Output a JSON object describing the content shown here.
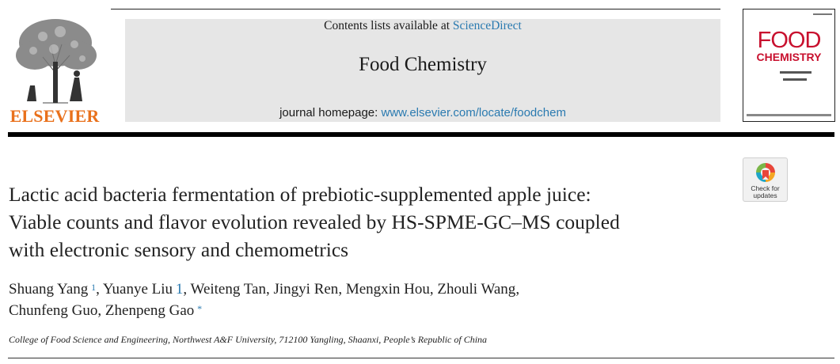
{
  "publisher": {
    "logo_word": "ELSEVIER"
  },
  "banner": {
    "contents_prefix": "Contents lists available at ",
    "contents_link": "ScienceDirect",
    "journal_name": "Food Chemistry",
    "homepage_prefix": "journal homepage: ",
    "homepage_link": "www.elsevier.com/locate/foodchem"
  },
  "cover": {
    "line1": "FOOD",
    "line2": "CHEMISTRY"
  },
  "check_updates": {
    "label_line1": "Check for",
    "label_line2": "updates"
  },
  "article": {
    "title_lines": [
      "Lactic acid bacteria fermentation of prebiotic-supplemented apple juice:",
      "Viable counts and flavor evolution revealed by HS-SPME-GC–MS coupled",
      "with electronic sensory and chemometrics"
    ],
    "authors": [
      {
        "name": "Shuang Yang",
        "mark": "1"
      },
      {
        "name": "Yuanye Liu",
        "mark": "1"
      },
      {
        "name": "Weiteng Tan",
        "mark": ""
      },
      {
        "name": "Jingyi Ren",
        "mark": ""
      },
      {
        "name": "Mengxin Hou",
        "mark": ""
      },
      {
        "name": "Zhouli Wang",
        "mark": ""
      },
      {
        "name": "Chunfeng Guo",
        "mark": ""
      },
      {
        "name": "Zhenpeng Gao",
        "mark": "*"
      }
    ],
    "affiliation": "College of Food Science and Engineering, Northwest A&F University, 712100 Yangling, Shaanxi, People’s Republic of China"
  },
  "colors": {
    "elsevier_orange": "#e9711c",
    "link_blue": "#2a7ab0",
    "banner_gray": "#e6e6e6",
    "cover_red": "#c8102e"
  }
}
